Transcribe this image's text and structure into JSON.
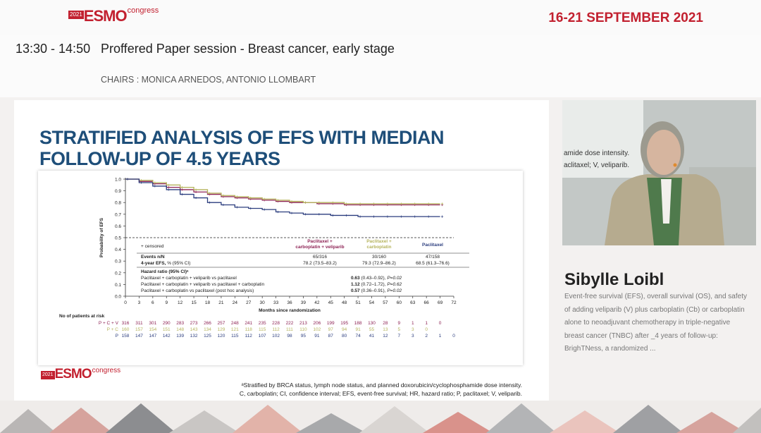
{
  "header": {
    "logo": {
      "year": "2021",
      "brand": "ESMO",
      "suffix": "congress"
    },
    "dates": "16-21 SEPTEMBER 2021"
  },
  "session": {
    "time": "13:30 - 14:50",
    "title": "Proffered Paper session - Breast cancer, early stage",
    "chairs": "CHAIRS : MONICA ARNEDOS, ANTONIO LLOMBART"
  },
  "slide": {
    "title": "STRATIFIED ANALYSIS OF EFS WITH MEDIAN FOLLOW-UP OF 4.5 YEARS",
    "footnote_line1": "ᵃStratified by BRCA status, lymph node status, and planned doxorubicin/cyclophosphamide dose intensity.",
    "footnote_line2": "C, carboplatin; CI, confidence interval; EFS, event-free survival; HR, hazard ratio; P, paclitaxel; V, veliparib.",
    "logo": {
      "year": "2021",
      "brand": "ESMO",
      "suffix": "congress"
    }
  },
  "chart_data": {
    "type": "line",
    "xlabel": "Months since randomization",
    "ylabel": "Probability of EFS",
    "xlim": [
      0,
      72
    ],
    "ylim": [
      0,
      1.0
    ],
    "x_ticks": [
      0,
      3,
      6,
      9,
      12,
      15,
      18,
      21,
      24,
      27,
      30,
      33,
      36,
      39,
      42,
      45,
      48,
      51,
      54,
      57,
      60,
      63,
      66,
      69,
      72
    ],
    "y_ticks": [
      "0.0",
      "0.1",
      "0.2",
      "0.3",
      "0.4",
      "0.5",
      "0.6",
      "0.7",
      "0.8",
      "0.9",
      "1.0"
    ],
    "reference_line_y": 0.5,
    "series": [
      {
        "name": "Paclitaxel + carboplatin + veliparib",
        "color": "#8e2355",
        "x": [
          0,
          3,
          6,
          9,
          12,
          15,
          18,
          21,
          24,
          27,
          30,
          33,
          36,
          39,
          42,
          45,
          48,
          51,
          54,
          57,
          60,
          63,
          66,
          69
        ],
        "y": [
          1.0,
          0.98,
          0.96,
          0.93,
          0.91,
          0.89,
          0.87,
          0.85,
          0.84,
          0.83,
          0.82,
          0.81,
          0.8,
          0.8,
          0.79,
          0.79,
          0.78,
          0.78,
          0.78,
          0.78,
          0.78,
          0.78,
          0.78,
          0.78
        ]
      },
      {
        "name": "Paclitaxel + carboplatin",
        "color": "#b5b35c",
        "x": [
          0,
          3,
          6,
          9,
          12,
          15,
          18,
          21,
          24,
          27,
          30,
          33,
          36,
          39,
          42,
          45,
          48,
          51,
          54,
          57,
          60,
          63,
          66,
          69
        ],
        "y": [
          1.0,
          0.99,
          0.97,
          0.95,
          0.93,
          0.91,
          0.88,
          0.86,
          0.85,
          0.84,
          0.83,
          0.82,
          0.81,
          0.8,
          0.8,
          0.8,
          0.79,
          0.79,
          0.79,
          0.79,
          0.79,
          0.79,
          0.79,
          0.79
        ]
      },
      {
        "name": "Paclitaxel",
        "color": "#2b3d7e",
        "x": [
          0,
          3,
          6,
          9,
          12,
          15,
          18,
          21,
          24,
          27,
          30,
          33,
          36,
          39,
          42,
          45,
          48,
          51,
          54,
          57,
          60,
          63,
          66,
          69
        ],
        "y": [
          1.0,
          0.97,
          0.94,
          0.91,
          0.87,
          0.84,
          0.8,
          0.78,
          0.76,
          0.75,
          0.74,
          0.72,
          0.71,
          0.7,
          0.7,
          0.69,
          0.69,
          0.68,
          0.68,
          0.68,
          0.68,
          0.68,
          0.68,
          0.68
        ]
      }
    ],
    "legend_censored": "+ censored",
    "table": {
      "header": [
        "Paclitaxel + carboplatin + veliparib",
        "Paclitaxel + carboplatin",
        "Paclitaxel"
      ],
      "events_label": "Events n/N",
      "events": [
        "65/316",
        "30/160",
        "47/158"
      ],
      "efs_label": "4-year EFS, % (95% CI)",
      "efs": [
        "78.2 (73.5–83.2)",
        "79.3 (72.9–86.2)",
        "68.5 (61.3–76.6)"
      ],
      "hr_label": "Hazard ratio (95% CI)ᵃ",
      "hr_rows": [
        {
          "label": "Paclitaxel + carboplatin + veliparib vs paclitaxel",
          "hr": "0.63",
          "ci": "(0.43–0.92), ",
          "p": "P=0.02"
        },
        {
          "label": "Paclitaxel + carboplatin + veliparib vs paclitaxel + carboplatin",
          "hr": "1.12",
          "ci": "(0.72–1.72), ",
          "p": "P=0.62"
        },
        {
          "label": "Paclitaxel + carboplatin vs paclitaxel (post hoc analysis)",
          "hr": "0.57",
          "ci": "(0.36–0.91), ",
          "p": "P=0.02"
        }
      ]
    },
    "at_risk": {
      "title": "No of patients at risk",
      "rows": [
        {
          "label": "P + C + V",
          "color": "#8e2355",
          "values": [
            "316",
            "311",
            "301",
            "290",
            "283",
            "273",
            "266",
            "257",
            "248",
            "241",
            "235",
            "228",
            "222",
            "213",
            "206",
            "199",
            "195",
            "188",
            "130",
            "28",
            "9",
            "1",
            "1",
            "0"
          ]
        },
        {
          "label": "P + C",
          "color": "#b5b35c",
          "values": [
            "160",
            "157",
            "154",
            "151",
            "148",
            "143",
            "134",
            "129",
            "121",
            "118",
            "115",
            "112",
            "111",
            "110",
            "102",
            "97",
            "94",
            "91",
            "55",
            "13",
            "5",
            "3",
            "0"
          ]
        },
        {
          "label": "P",
          "color": "#2b3d7e",
          "values": [
            "158",
            "147",
            "147",
            "142",
            "139",
            "132",
            "125",
            "120",
            "115",
            "112",
            "107",
            "102",
            "98",
            "95",
            "91",
            "87",
            "80",
            "74",
            "41",
            "12",
            "7",
            "3",
            "2",
            "1",
            "0"
          ]
        }
      ]
    }
  },
  "speaker": {
    "name": "Sibylle Loibl",
    "background_text_1": "amide dose intensity.",
    "background_text_2": "aclitaxel; V, veliparib.",
    "abstract": "Event-free survival (EFS), overall survival (OS), and safety of adding veliparib (V) plus carboplatin (Cb) or carboplatin alone to neoadjuvant chemotherapy in triple-negative breast cancer (TNBC) after _4 years of follow-up: BrighTNess, a randomized ..."
  },
  "colors": {
    "brand_red": "#c2202f",
    "title_blue": "#1e4e79"
  }
}
